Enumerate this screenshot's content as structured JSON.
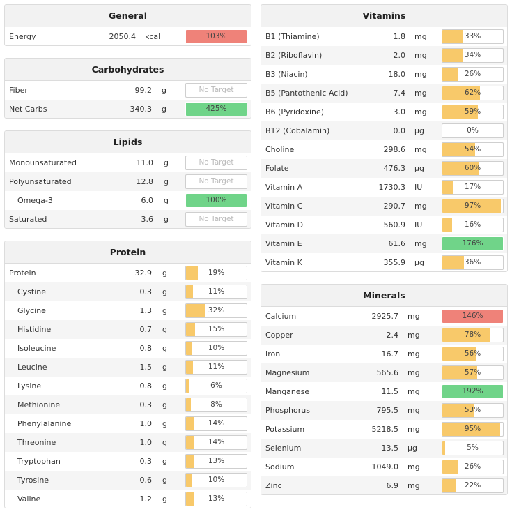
{
  "colors": {
    "under": "#f8c96a",
    "ok": "#70d489",
    "over": "#ef8279",
    "empty": "#ffffff"
  },
  "panels": [
    {
      "key": "general",
      "title": "General",
      "rows": [
        {
          "name": "Energy",
          "value": "2050.4",
          "unit": "kcal",
          "percent": "103%",
          "fill": 1.0,
          "status": "over"
        }
      ]
    },
    {
      "key": "carbohydrates",
      "title": "Carbohydrates",
      "rows": [
        {
          "name": "Fiber",
          "value": "99.2",
          "unit": "g",
          "percent": "No Target",
          "fill": 0,
          "status": "none"
        },
        {
          "name": "Net Carbs",
          "value": "340.3",
          "unit": "g",
          "percent": "425%",
          "fill": 1.0,
          "status": "ok"
        }
      ]
    },
    {
      "key": "lipids",
      "title": "Lipids",
      "rows": [
        {
          "name": "Monounsaturated",
          "value": "11.0",
          "unit": "g",
          "percent": "No Target",
          "fill": 0,
          "status": "none"
        },
        {
          "name": "Polyunsaturated",
          "value": "12.8",
          "unit": "g",
          "percent": "No Target",
          "fill": 0,
          "status": "none"
        },
        {
          "name": "Omega-3",
          "value": "6.0",
          "unit": "g",
          "percent": "100%",
          "fill": 1.0,
          "status": "ok",
          "indent": true
        },
        {
          "name": "Saturated",
          "value": "3.6",
          "unit": "g",
          "percent": "No Target",
          "fill": 0,
          "status": "none"
        }
      ]
    },
    {
      "key": "protein",
      "title": "Protein",
      "rows": [
        {
          "name": "Protein",
          "value": "32.9",
          "unit": "g",
          "percent": "19%",
          "fill": 0.19,
          "status": "under"
        },
        {
          "name": "Cystine",
          "value": "0.3",
          "unit": "g",
          "percent": "11%",
          "fill": 0.11,
          "status": "under",
          "indent": true
        },
        {
          "name": "Glycine",
          "value": "1.3",
          "unit": "g",
          "percent": "32%",
          "fill": 0.32,
          "status": "under",
          "indent": true
        },
        {
          "name": "Histidine",
          "value": "0.7",
          "unit": "g",
          "percent": "15%",
          "fill": 0.15,
          "status": "under",
          "indent": true
        },
        {
          "name": "Isoleucine",
          "value": "0.8",
          "unit": "g",
          "percent": "10%",
          "fill": 0.1,
          "status": "under",
          "indent": true
        },
        {
          "name": "Leucine",
          "value": "1.5",
          "unit": "g",
          "percent": "11%",
          "fill": 0.11,
          "status": "under",
          "indent": true
        },
        {
          "name": "Lysine",
          "value": "0.8",
          "unit": "g",
          "percent": "6%",
          "fill": 0.06,
          "status": "under",
          "indent": true
        },
        {
          "name": "Methionine",
          "value": "0.3",
          "unit": "g",
          "percent": "8%",
          "fill": 0.08,
          "status": "under",
          "indent": true
        },
        {
          "name": "Phenylalanine",
          "value": "1.0",
          "unit": "g",
          "percent": "14%",
          "fill": 0.14,
          "status": "under",
          "indent": true
        },
        {
          "name": "Threonine",
          "value": "1.0",
          "unit": "g",
          "percent": "14%",
          "fill": 0.14,
          "status": "under",
          "indent": true
        },
        {
          "name": "Tryptophan",
          "value": "0.3",
          "unit": "g",
          "percent": "13%",
          "fill": 0.13,
          "status": "under",
          "indent": true
        },
        {
          "name": "Tyrosine",
          "value": "0.6",
          "unit": "g",
          "percent": "10%",
          "fill": 0.1,
          "status": "under",
          "indent": true
        },
        {
          "name": "Valine",
          "value": "1.2",
          "unit": "g",
          "percent": "13%",
          "fill": 0.13,
          "status": "under",
          "indent": true
        }
      ]
    },
    {
      "key": "vitamins",
      "title": "Vitamins",
      "rows": [
        {
          "name": "B1 (Thiamine)",
          "value": "1.8",
          "unit": "mg",
          "percent": "33%",
          "fill": 0.33,
          "status": "under"
        },
        {
          "name": "B2 (Riboflavin)",
          "value": "2.0",
          "unit": "mg",
          "percent": "34%",
          "fill": 0.34,
          "status": "under"
        },
        {
          "name": "B3 (Niacin)",
          "value": "18.0",
          "unit": "mg",
          "percent": "26%",
          "fill": 0.26,
          "status": "under"
        },
        {
          "name": "B5 (Pantothenic Acid)",
          "value": "7.4",
          "unit": "mg",
          "percent": "62%",
          "fill": 0.62,
          "status": "under"
        },
        {
          "name": "B6 (Pyridoxine)",
          "value": "3.0",
          "unit": "mg",
          "percent": "59%",
          "fill": 0.59,
          "status": "under"
        },
        {
          "name": "B12 (Cobalamin)",
          "value": "0.0",
          "unit": "µg",
          "percent": "0%",
          "fill": 0,
          "status": "under"
        },
        {
          "name": "Choline",
          "value": "298.6",
          "unit": "mg",
          "percent": "54%",
          "fill": 0.54,
          "status": "under"
        },
        {
          "name": "Folate",
          "value": "476.3",
          "unit": "µg",
          "percent": "60%",
          "fill": 0.6,
          "status": "under"
        },
        {
          "name": "Vitamin A",
          "value": "1730.3",
          "unit": "IU",
          "percent": "17%",
          "fill": 0.17,
          "status": "under"
        },
        {
          "name": "Vitamin C",
          "value": "290.7",
          "unit": "mg",
          "percent": "97%",
          "fill": 0.97,
          "status": "under"
        },
        {
          "name": "Vitamin D",
          "value": "560.9",
          "unit": "IU",
          "percent": "16%",
          "fill": 0.16,
          "status": "under"
        },
        {
          "name": "Vitamin E",
          "value": "61.6",
          "unit": "mg",
          "percent": "176%",
          "fill": 1.0,
          "status": "ok"
        },
        {
          "name": "Vitamin K",
          "value": "355.9",
          "unit": "µg",
          "percent": "36%",
          "fill": 0.36,
          "status": "under"
        }
      ]
    },
    {
      "key": "minerals",
      "title": "Minerals",
      "rows": [
        {
          "name": "Calcium",
          "value": "2925.7",
          "unit": "mg",
          "percent": "146%",
          "fill": 1.0,
          "status": "over"
        },
        {
          "name": "Copper",
          "value": "2.4",
          "unit": "mg",
          "percent": "78%",
          "fill": 0.78,
          "status": "under"
        },
        {
          "name": "Iron",
          "value": "16.7",
          "unit": "mg",
          "percent": "56%",
          "fill": 0.56,
          "status": "under"
        },
        {
          "name": "Magnesium",
          "value": "565.6",
          "unit": "mg",
          "percent": "57%",
          "fill": 0.57,
          "status": "under"
        },
        {
          "name": "Manganese",
          "value": "11.5",
          "unit": "mg",
          "percent": "192%",
          "fill": 1.0,
          "status": "ok"
        },
        {
          "name": "Phosphorus",
          "value": "795.5",
          "unit": "mg",
          "percent": "53%",
          "fill": 0.53,
          "status": "under"
        },
        {
          "name": "Potassium",
          "value": "5218.5",
          "unit": "mg",
          "percent": "95%",
          "fill": 0.95,
          "status": "under"
        },
        {
          "name": "Selenium",
          "value": "13.5",
          "unit": "µg",
          "percent": "5%",
          "fill": 0.05,
          "status": "under"
        },
        {
          "name": "Sodium",
          "value": "1049.0",
          "unit": "mg",
          "percent": "26%",
          "fill": 0.26,
          "status": "under"
        },
        {
          "name": "Zinc",
          "value": "6.9",
          "unit": "mg",
          "percent": "22%",
          "fill": 0.22,
          "status": "under"
        }
      ]
    }
  ]
}
